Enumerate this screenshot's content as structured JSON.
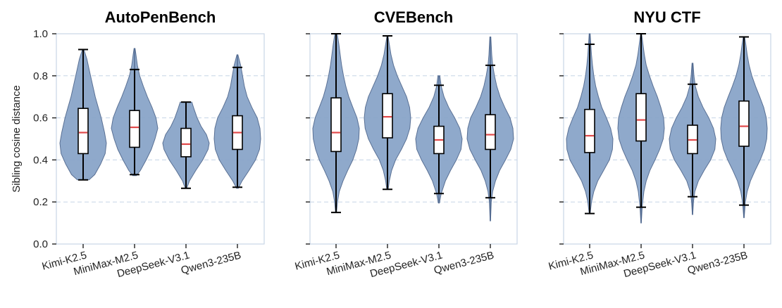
{
  "chart_data": [
    {
      "type": "violin",
      "title": "AutoPenBench",
      "ylabel": "Sibling cosine distance",
      "ylim": [
        0,
        1
      ],
      "yticks": [
        "0.0",
        "0.2",
        "0.4",
        "0.6",
        "0.8",
        "1.0"
      ],
      "grid": true,
      "categories": [
        "Kimi-K2.5",
        "MiniMax-M2.5",
        "DeepSeek-V3.1",
        "Qwen3-235B"
      ],
      "series": [
        {
          "min": 0.305,
          "max": 0.925,
          "q1": 0.43,
          "median": 0.53,
          "q3": 0.645,
          "wlo": 0.305,
          "whi": 0.925,
          "profile": [
            [
              0.305,
              0.25
            ],
            [
              0.33,
              0.5
            ],
            [
              0.38,
              0.75
            ],
            [
              0.43,
              0.95
            ],
            [
              0.48,
              1.0
            ],
            [
              0.53,
              0.92
            ],
            [
              0.6,
              0.78
            ],
            [
              0.65,
              0.65
            ],
            [
              0.7,
              0.52
            ],
            [
              0.76,
              0.4
            ],
            [
              0.82,
              0.28
            ],
            [
              0.88,
              0.16
            ],
            [
              0.925,
              0.03
            ]
          ]
        },
        {
          "min": 0.325,
          "max": 0.93,
          "q1": 0.46,
          "median": 0.555,
          "q3": 0.635,
          "wlo": 0.33,
          "whi": 0.83,
          "profile": [
            [
              0.325,
              0.08
            ],
            [
              0.35,
              0.25
            ],
            [
              0.4,
              0.5
            ],
            [
              0.45,
              0.72
            ],
            [
              0.5,
              0.88
            ],
            [
              0.55,
              1.0
            ],
            [
              0.6,
              0.92
            ],
            [
              0.65,
              0.75
            ],
            [
              0.7,
              0.55
            ],
            [
              0.75,
              0.38
            ],
            [
              0.8,
              0.22
            ],
            [
              0.85,
              0.12
            ],
            [
              0.9,
              0.06
            ],
            [
              0.93,
              0.02
            ]
          ]
        },
        {
          "min": 0.265,
          "max": 0.675,
          "q1": 0.415,
          "median": 0.475,
          "q3": 0.55,
          "wlo": 0.265,
          "whi": 0.675,
          "profile": [
            [
              0.265,
              0.03
            ],
            [
              0.3,
              0.15
            ],
            [
              0.35,
              0.42
            ],
            [
              0.4,
              0.72
            ],
            [
              0.45,
              0.95
            ],
            [
              0.48,
              1.0
            ],
            [
              0.52,
              0.88
            ],
            [
              0.56,
              0.65
            ],
            [
              0.6,
              0.48
            ],
            [
              0.64,
              0.35
            ],
            [
              0.675,
              0.25
            ]
          ]
        },
        {
          "min": 0.265,
          "max": 0.9,
          "q1": 0.45,
          "median": 0.53,
          "q3": 0.61,
          "wlo": 0.27,
          "whi": 0.84,
          "profile": [
            [
              0.265,
              0.04
            ],
            [
              0.3,
              0.2
            ],
            [
              0.35,
              0.5
            ],
            [
              0.4,
              0.78
            ],
            [
              0.45,
              0.95
            ],
            [
              0.5,
              1.0
            ],
            [
              0.55,
              0.97
            ],
            [
              0.6,
              0.85
            ],
            [
              0.65,
              0.62
            ],
            [
              0.7,
              0.42
            ],
            [
              0.75,
              0.3
            ],
            [
              0.8,
              0.22
            ],
            [
              0.85,
              0.14
            ],
            [
              0.9,
              0.02
            ]
          ]
        }
      ]
    },
    {
      "type": "violin",
      "title": "CVEBench",
      "ylim": [
        0,
        1
      ],
      "grid": true,
      "categories": [
        "Kimi-K2.5",
        "MiniMax-M2.5",
        "DeepSeek-V3.1",
        "Qwen3-235B"
      ],
      "series": [
        {
          "min": 0.15,
          "max": 1.0,
          "q1": 0.44,
          "median": 0.53,
          "q3": 0.695,
          "wlo": 0.15,
          "whi": 1.0,
          "profile": [
            [
              0.15,
              0.02
            ],
            [
              0.2,
              0.06
            ],
            [
              0.25,
              0.14
            ],
            [
              0.3,
              0.3
            ],
            [
              0.35,
              0.5
            ],
            [
              0.4,
              0.72
            ],
            [
              0.45,
              0.88
            ],
            [
              0.5,
              0.98
            ],
            [
              0.55,
              1.0
            ],
            [
              0.6,
              0.9
            ],
            [
              0.65,
              0.72
            ],
            [
              0.7,
              0.55
            ],
            [
              0.75,
              0.42
            ],
            [
              0.8,
              0.32
            ],
            [
              0.85,
              0.24
            ],
            [
              0.9,
              0.18
            ],
            [
              0.95,
              0.12
            ],
            [
              1.0,
              0.05
            ]
          ]
        },
        {
          "min": 0.26,
          "max": 0.99,
          "q1": 0.505,
          "median": 0.605,
          "q3": 0.715,
          "wlo": 0.26,
          "whi": 0.99,
          "profile": [
            [
              0.26,
              0.03
            ],
            [
              0.3,
              0.08
            ],
            [
              0.35,
              0.18
            ],
            [
              0.4,
              0.35
            ],
            [
              0.45,
              0.6
            ],
            [
              0.5,
              0.82
            ],
            [
              0.55,
              0.96
            ],
            [
              0.6,
              1.0
            ],
            [
              0.65,
              0.95
            ],
            [
              0.7,
              0.82
            ],
            [
              0.75,
              0.62
            ],
            [
              0.8,
              0.42
            ],
            [
              0.85,
              0.26
            ],
            [
              0.9,
              0.15
            ],
            [
              0.95,
              0.08
            ],
            [
              0.99,
              0.02
            ]
          ]
        },
        {
          "min": 0.195,
          "max": 0.8,
          "q1": 0.43,
          "median": 0.495,
          "q3": 0.56,
          "wlo": 0.24,
          "whi": 0.755,
          "profile": [
            [
              0.195,
              0.02
            ],
            [
              0.24,
              0.1
            ],
            [
              0.3,
              0.28
            ],
            [
              0.35,
              0.5
            ],
            [
              0.4,
              0.75
            ],
            [
              0.45,
              0.95
            ],
            [
              0.5,
              1.0
            ],
            [
              0.55,
              0.9
            ],
            [
              0.6,
              0.68
            ],
            [
              0.65,
              0.42
            ],
            [
              0.7,
              0.22
            ],
            [
              0.75,
              0.1
            ],
            [
              0.8,
              0.04
            ]
          ]
        },
        {
          "min": 0.11,
          "max": 0.985,
          "q1": 0.45,
          "median": 0.52,
          "q3": 0.615,
          "wlo": 0.22,
          "whi": 0.85,
          "profile": [
            [
              0.11,
              0.01
            ],
            [
              0.2,
              0.04
            ],
            [
              0.25,
              0.1
            ],
            [
              0.3,
              0.22
            ],
            [
              0.35,
              0.4
            ],
            [
              0.4,
              0.65
            ],
            [
              0.45,
              0.88
            ],
            [
              0.5,
              1.0
            ],
            [
              0.55,
              0.97
            ],
            [
              0.6,
              0.85
            ],
            [
              0.65,
              0.62
            ],
            [
              0.7,
              0.42
            ],
            [
              0.75,
              0.28
            ],
            [
              0.8,
              0.18
            ],
            [
              0.85,
              0.1
            ],
            [
              0.9,
              0.06
            ],
            [
              0.985,
              0.02
            ]
          ]
        }
      ]
    },
    {
      "type": "violin",
      "title": "NYU CTF",
      "ylim": [
        0,
        1
      ],
      "grid": true,
      "categories": [
        "Kimi-K2.5",
        "MiniMax-M2.5",
        "DeepSeek-V3.1",
        "Qwen3-235B"
      ],
      "series": [
        {
          "min": 0.145,
          "max": 1.0,
          "q1": 0.435,
          "median": 0.515,
          "q3": 0.64,
          "wlo": 0.145,
          "whi": 0.95,
          "profile": [
            [
              0.145,
              0.02
            ],
            [
              0.2,
              0.08
            ],
            [
              0.25,
              0.18
            ],
            [
              0.3,
              0.35
            ],
            [
              0.35,
              0.6
            ],
            [
              0.4,
              0.85
            ],
            [
              0.45,
              0.98
            ],
            [
              0.5,
              1.0
            ],
            [
              0.55,
              0.9
            ],
            [
              0.6,
              0.72
            ],
            [
              0.65,
              0.52
            ],
            [
              0.7,
              0.38
            ],
            [
              0.75,
              0.26
            ],
            [
              0.8,
              0.18
            ],
            [
              0.85,
              0.12
            ],
            [
              0.9,
              0.08
            ],
            [
              0.95,
              0.05
            ],
            [
              1.0,
              0.02
            ]
          ]
        },
        {
          "min": 0.1,
          "max": 1.0,
          "q1": 0.49,
          "median": 0.59,
          "q3": 0.715,
          "wlo": 0.175,
          "whi": 1.0,
          "profile": [
            [
              0.1,
              0.01
            ],
            [
              0.18,
              0.05
            ],
            [
              0.25,
              0.12
            ],
            [
              0.3,
              0.22
            ],
            [
              0.35,
              0.38
            ],
            [
              0.4,
              0.6
            ],
            [
              0.45,
              0.8
            ],
            [
              0.5,
              0.95
            ],
            [
              0.55,
              1.0
            ],
            [
              0.6,
              0.97
            ],
            [
              0.65,
              0.85
            ],
            [
              0.7,
              0.7
            ],
            [
              0.75,
              0.52
            ],
            [
              0.8,
              0.36
            ],
            [
              0.85,
              0.22
            ],
            [
              0.9,
              0.14
            ],
            [
              0.95,
              0.08
            ],
            [
              1.0,
              0.02
            ]
          ]
        },
        {
          "min": 0.14,
          "max": 0.86,
          "q1": 0.43,
          "median": 0.495,
          "q3": 0.565,
          "wlo": 0.225,
          "whi": 0.76,
          "profile": [
            [
              0.14,
              0.01
            ],
            [
              0.2,
              0.04
            ],
            [
              0.25,
              0.1
            ],
            [
              0.3,
              0.25
            ],
            [
              0.35,
              0.5
            ],
            [
              0.4,
              0.78
            ],
            [
              0.45,
              0.96
            ],
            [
              0.5,
              1.0
            ],
            [
              0.55,
              0.9
            ],
            [
              0.6,
              0.7
            ],
            [
              0.65,
              0.45
            ],
            [
              0.7,
              0.25
            ],
            [
              0.75,
              0.12
            ],
            [
              0.8,
              0.06
            ],
            [
              0.86,
              0.02
            ]
          ]
        },
        {
          "min": 0.125,
          "max": 0.985,
          "q1": 0.465,
          "median": 0.56,
          "q3": 0.68,
          "wlo": 0.185,
          "whi": 0.985,
          "profile": [
            [
              0.125,
              0.01
            ],
            [
              0.2,
              0.06
            ],
            [
              0.25,
              0.14
            ],
            [
              0.3,
              0.28
            ],
            [
              0.35,
              0.48
            ],
            [
              0.4,
              0.7
            ],
            [
              0.45,
              0.88
            ],
            [
              0.5,
              0.98
            ],
            [
              0.55,
              1.0
            ],
            [
              0.6,
              0.96
            ],
            [
              0.65,
              0.85
            ],
            [
              0.7,
              0.68
            ],
            [
              0.75,
              0.5
            ],
            [
              0.8,
              0.34
            ],
            [
              0.85,
              0.22
            ],
            [
              0.9,
              0.14
            ],
            [
              0.95,
              0.08
            ],
            [
              0.985,
              0.03
            ]
          ]
        }
      ]
    }
  ],
  "colors": {
    "violin_fill": "#8aa5c9",
    "violin_edge": "#51698f",
    "median": "#e0494a",
    "grid": "#c5d5e6",
    "frame": "#c9d6e6"
  }
}
